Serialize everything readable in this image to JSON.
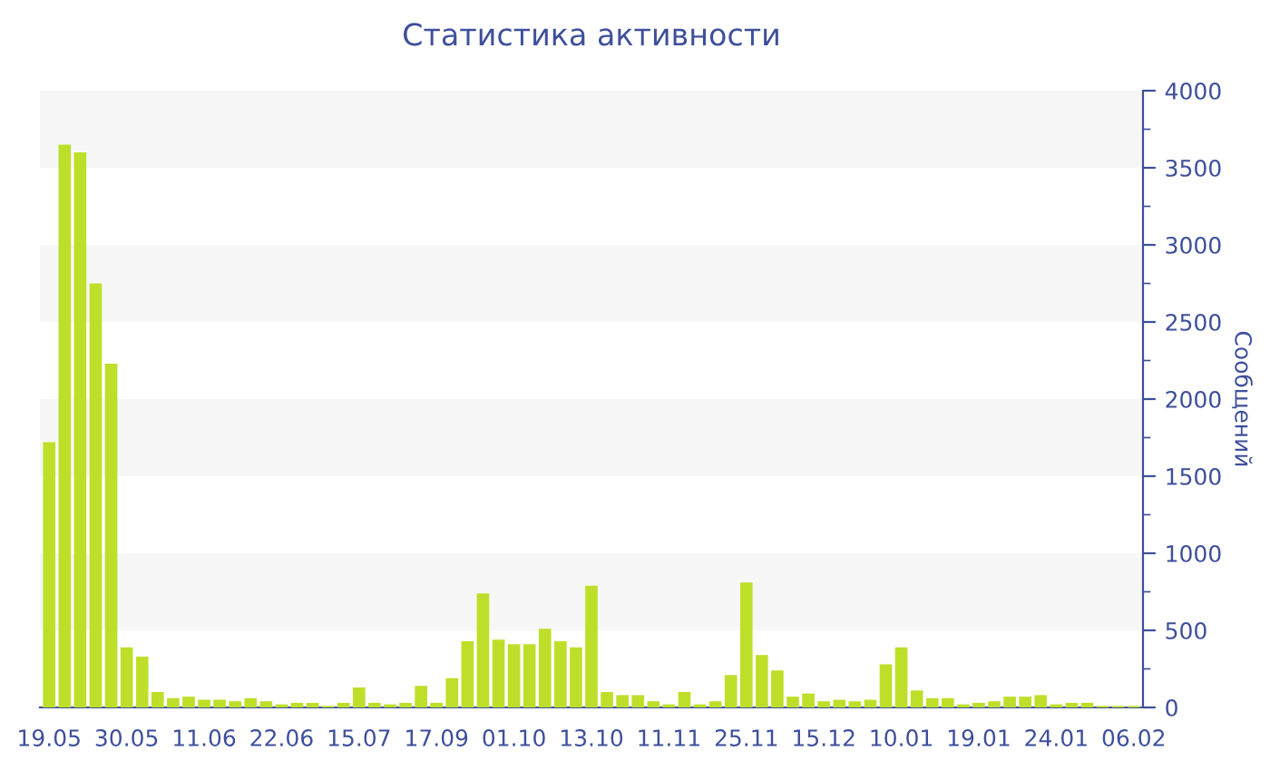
{
  "chart_data": {
    "type": "bar",
    "title": "Статистика активности",
    "ylabel": "Сообщений",
    "categories": [
      "19.05",
      null,
      null,
      null,
      null,
      "30.05",
      null,
      null,
      null,
      null,
      "11.06",
      null,
      null,
      null,
      null,
      "22.06",
      null,
      null,
      null,
      null,
      "15.07",
      null,
      null,
      null,
      null,
      "17.09",
      null,
      null,
      null,
      null,
      "01.10",
      null,
      null,
      null,
      null,
      "13.10",
      null,
      null,
      null,
      null,
      "11.11",
      null,
      null,
      null,
      null,
      "25.11",
      null,
      null,
      null,
      null,
      "15.12",
      null,
      null,
      null,
      null,
      "10.01",
      null,
      null,
      null,
      null,
      "19.01",
      null,
      null,
      null,
      null,
      "24.01",
      null,
      null,
      null,
      null,
      "06.02"
    ],
    "values": [
      1720,
      3650,
      3600,
      2750,
      2230,
      390,
      330,
      100,
      60,
      70,
      50,
      50,
      40,
      60,
      40,
      20,
      30,
      30,
      10,
      30,
      130,
      30,
      20,
      30,
      140,
      30,
      190,
      430,
      740,
      440,
      410,
      410,
      510,
      430,
      390,
      790,
      100,
      80,
      80,
      40,
      20,
      100,
      20,
      40,
      210,
      810,
      340,
      240,
      70,
      90,
      40,
      50,
      40,
      50,
      280,
      390,
      110,
      60,
      60,
      20,
      30,
      40,
      70,
      70,
      80,
      20,
      30,
      30,
      10,
      10,
      10
    ],
    "color": "#bedf2a",
    "ylim": [
      0,
      4000
    ],
    "yticks": [
      0,
      500,
      1000,
      1500,
      2000,
      2500,
      3000,
      3500,
      4000
    ],
    "bands": [
      {
        "axis": "y",
        "from": 500,
        "to": 1000,
        "color": "#f7f7f7"
      },
      {
        "axis": "y",
        "from": 1500,
        "to": 2000,
        "color": "#f7f7f7"
      },
      {
        "axis": "y",
        "from": 2500,
        "to": 3000,
        "color": "#f7f7f7"
      },
      {
        "axis": "y",
        "from": 3500,
        "to": 4000,
        "color": "#f7f7f7"
      }
    ]
  }
}
